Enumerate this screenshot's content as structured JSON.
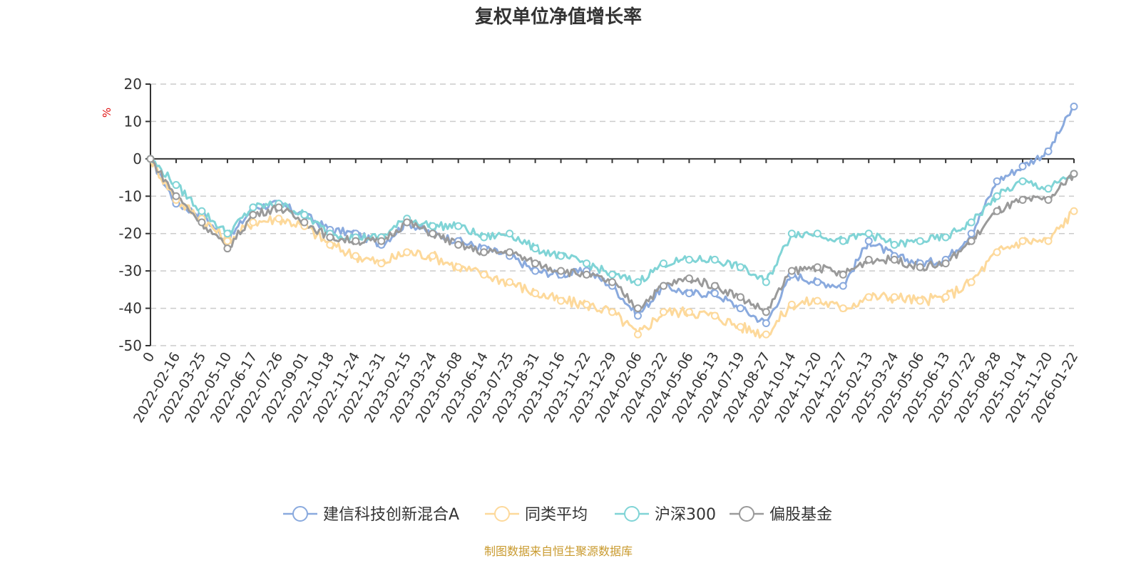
{
  "chart_data": {
    "type": "line",
    "title": "复权单位净值增长率",
    "ylabel": "%",
    "xlabel": "",
    "ylim": [
      -50,
      20
    ],
    "yticks": [
      20,
      10,
      0,
      -10,
      -20,
      -30,
      -40,
      -50
    ],
    "grid": true,
    "legend_position": "bottom",
    "categories": [
      "0",
      "2022-02-16",
      "2022-03-25",
      "2022-05-10",
      "2022-06-17",
      "2022-07-26",
      "2022-09-01",
      "2022-10-18",
      "2022-11-24",
      "2022-12-31",
      "2023-02-15",
      "2023-03-24",
      "2023-05-08",
      "2023-06-14",
      "2023-07-25",
      "2023-08-31",
      "2023-10-16",
      "2023-11-22",
      "2023-12-29",
      "2024-02-06",
      "2024-03-22",
      "2024-05-06",
      "2024-06-13",
      "2024-07-19",
      "2024-08-27",
      "2024-10-14",
      "2024-11-20",
      "2024-12-27",
      "2025-02-13",
      "2025-03-24",
      "2025-05-06",
      "2025-06-13",
      "2025-07-22",
      "2025-08-28",
      "2025-10-14",
      "2025-11-20",
      "2026-01-22"
    ],
    "series": [
      {
        "name": "建信科技创新混合A",
        "color": "#8aaade",
        "values": [
          0,
          -12,
          -15,
          -22,
          -13,
          -12,
          -15,
          -19,
          -20,
          -23,
          -17,
          -20,
          -22,
          -24,
          -26,
          -30,
          -31,
          -30,
          -34,
          -42,
          -34,
          -36,
          -36,
          -40,
          -44,
          -31,
          -33,
          -34,
          -22,
          -26,
          -28,
          -27,
          -20,
          -6,
          -2,
          2,
          14
        ]
      },
      {
        "name": "同类平均",
        "color": "#fdd99b",
        "values": [
          0,
          -11,
          -16,
          -22,
          -17,
          -16,
          -18,
          -23,
          -26,
          -28,
          -25,
          -26,
          -29,
          -31,
          -33,
          -36,
          -38,
          -39,
          -41,
          -47,
          -41,
          -41,
          -42,
          -45,
          -47,
          -39,
          -38,
          -40,
          -37,
          -37,
          -38,
          -37,
          -33,
          -25,
          -22,
          -22,
          -14
        ]
      },
      {
        "name": "沪深300",
        "color": "#80d4d6",
        "values": [
          0,
          -7,
          -14,
          -20,
          -13,
          -12,
          -15,
          -20,
          -21,
          -21,
          -16,
          -18,
          -18,
          -21,
          -20,
          -24,
          -26,
          -28,
          -31,
          -33,
          -28,
          -27,
          -27,
          -29,
          -33,
          -20,
          -20,
          -22,
          -20,
          -23,
          -22,
          -21,
          -17,
          -10,
          -6,
          -8,
          -4
        ]
      },
      {
        "name": "偏股基金",
        "color": "#9a9a9a",
        "values": [
          0,
          -10,
          -17,
          -24,
          -15,
          -13,
          -17,
          -21,
          -22,
          -22,
          -17,
          -20,
          -23,
          -25,
          -25,
          -28,
          -30,
          -31,
          -33,
          -40,
          -34,
          -32,
          -34,
          -37,
          -41,
          -30,
          -29,
          -31,
          -27,
          -27,
          -29,
          -28,
          -22,
          -14,
          -11,
          -11,
          -4
        ]
      }
    ]
  },
  "footer": {
    "source": "制图数据来自恒生聚源数据库",
    "color": "#c99a2e"
  }
}
